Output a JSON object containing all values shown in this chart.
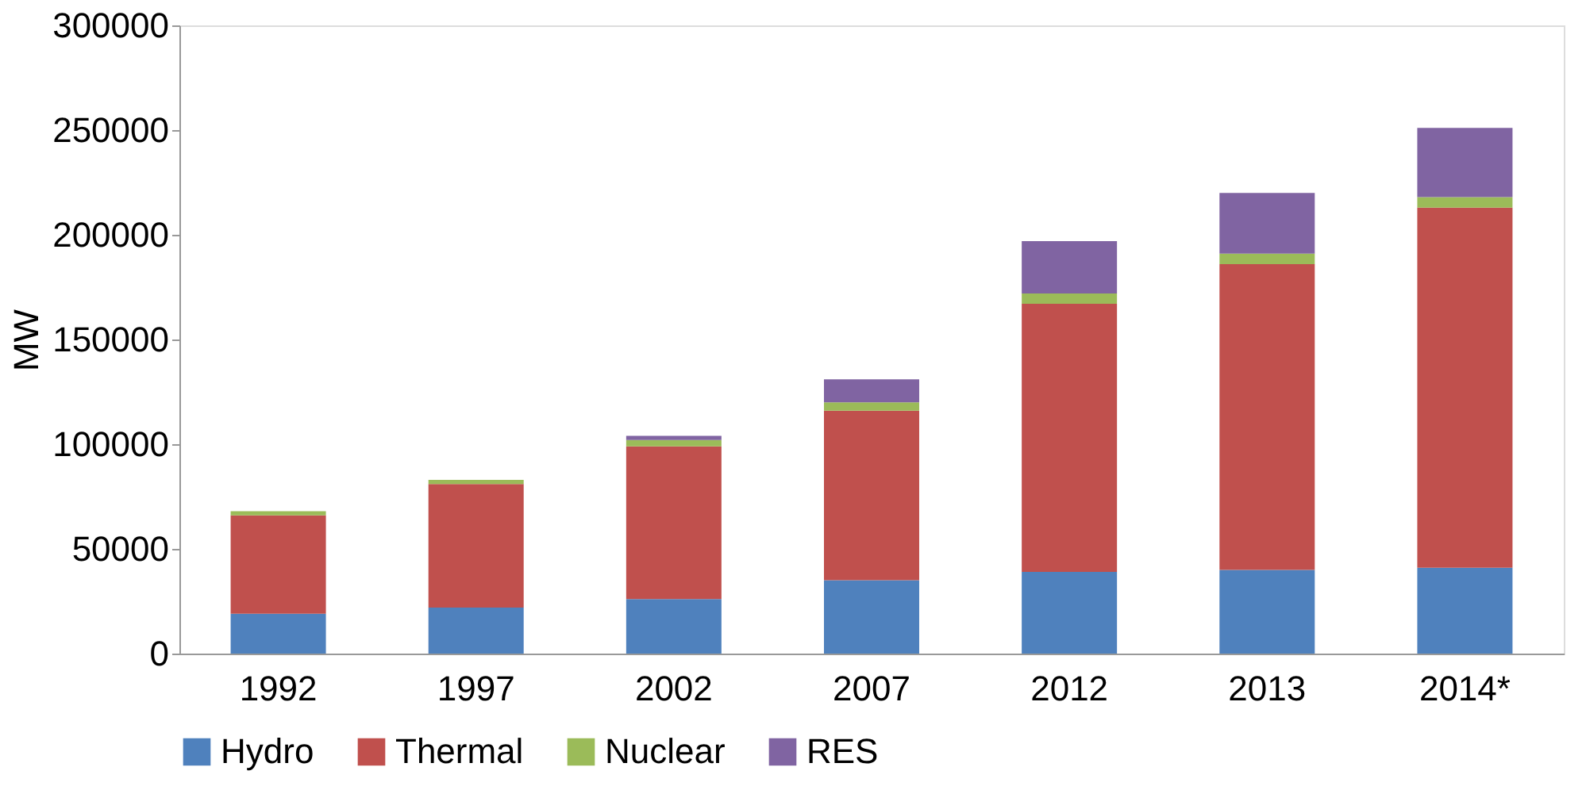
{
  "chart_data": {
    "type": "bar",
    "stacked": true,
    "ylabel": "MW",
    "categories": [
      "1992",
      "1997",
      "2002",
      "2007",
      "2012",
      "2013",
      "2014*"
    ],
    "series": [
      {
        "name": "Hydro",
        "color": "#4f81bd",
        "values": [
          19000,
          22000,
          26000,
          35000,
          39000,
          40000,
          41000
        ]
      },
      {
        "name": "Thermal",
        "color": "#c0504d",
        "values": [
          47000,
          59000,
          73000,
          81000,
          128000,
          146000,
          172000
        ]
      },
      {
        "name": "Nuclear",
        "color": "#9bbb59",
        "values": [
          2000,
          2000,
          3000,
          4000,
          5000,
          5000,
          5000
        ]
      },
      {
        "name": "RES",
        "color": "#8064a2",
        "values": [
          0,
          0,
          2000,
          11000,
          25000,
          29000,
          33000
        ]
      }
    ],
    "ylim": [
      0,
      300000
    ],
    "yticks": [
      0,
      50000,
      100000,
      150000,
      200000,
      250000,
      300000
    ],
    "grid": false,
    "legend": "bottom"
  }
}
